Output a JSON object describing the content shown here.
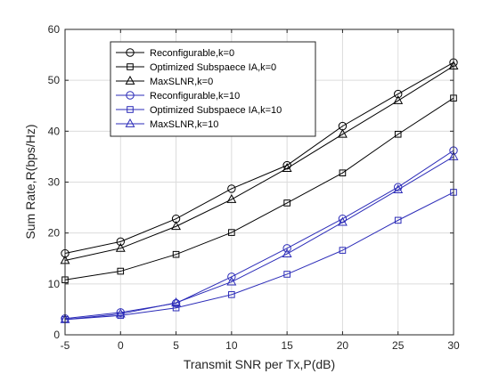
{
  "chart_data": {
    "type": "line",
    "title": "",
    "xlabel": "Transmit SNR per Tx,P(dB)",
    "ylabel": "Sum Rate,R(bps/Hz)",
    "x": [
      -5,
      0,
      5,
      10,
      15,
      20,
      25,
      30
    ],
    "xlim": [
      -5,
      30
    ],
    "ylim": [
      0,
      60
    ],
    "xticks": [
      "-5",
      "0",
      "5",
      "10",
      "15",
      "20",
      "25",
      "30"
    ],
    "yticks": [
      "0",
      "10",
      "20",
      "30",
      "40",
      "50",
      "60"
    ],
    "grid": true,
    "legend_position": "top-left",
    "series": [
      {
        "name": "Reconfigurable,k=0",
        "marker": "circle",
        "color": "#000000",
        "values": [
          16,
          18.3,
          22.8,
          28.7,
          33.3,
          41,
          47.3,
          53.5
        ]
      },
      {
        "name": "Optimized Subspaece IA,k=0",
        "marker": "square",
        "color": "#000000",
        "values": [
          10.8,
          12.5,
          15.8,
          20.1,
          25.9,
          31.8,
          39.4,
          46.5
        ]
      },
      {
        "name": "MaxSLNR,k=0",
        "marker": "triangle",
        "color": "#000000",
        "values": [
          14.6,
          17,
          21.3,
          26.6,
          32.7,
          39.4,
          46,
          52.8
        ]
      },
      {
        "name": "Reconfigurable,k=10",
        "marker": "circle",
        "color": "#2b2bb8",
        "values": [
          3.2,
          4.4,
          6.2,
          11.4,
          17,
          22.8,
          29,
          36.2
        ]
      },
      {
        "name": "Optimized Subspaece IA,k=10",
        "marker": "square",
        "color": "#2b2bb8",
        "values": [
          3,
          3.8,
          5.3,
          7.9,
          11.9,
          16.6,
          22.5,
          28
        ]
      },
      {
        "name": "MaxSLNR,k=10",
        "marker": "triangle",
        "color": "#2b2bb8",
        "values": [
          3,
          4.1,
          6.3,
          10.4,
          15.9,
          22.1,
          28.5,
          35
        ]
      }
    ]
  }
}
